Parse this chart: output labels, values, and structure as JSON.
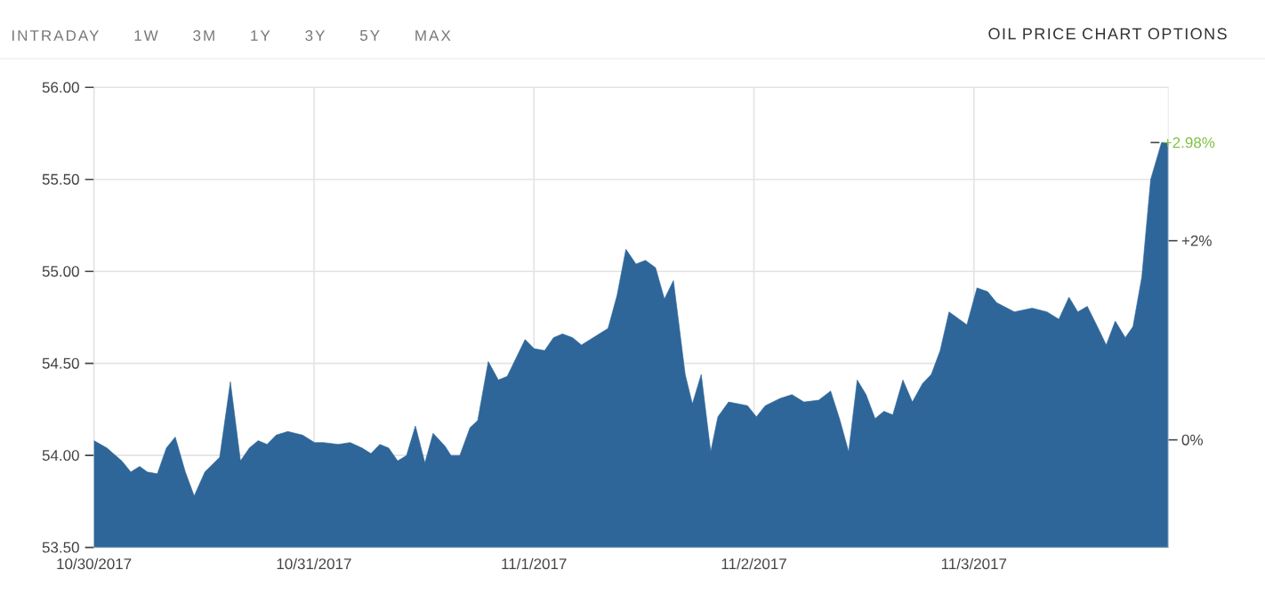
{
  "chart_data": {
    "type": "area",
    "title": "OIL PRICE CHART OPTIONS",
    "annotations": [
      "INTRADAY",
      "1W",
      "3M",
      "1Y",
      "3Y",
      "5Y",
      "MAX",
      {
        "text": "+2.98%",
        "x": "2017-11-03T21:14",
        "y": 55.7
      }
    ],
    "x": [
      "2017-10-30T00:00",
      "2017-10-30T01:25",
      "2017-10-30T03:02",
      "2017-10-30T04:01",
      "2017-10-30T04:59",
      "2017-10-30T05:49",
      "2017-10-30T06:55",
      "2017-10-30T07:54",
      "2017-10-30T08:52",
      "2017-10-30T09:58",
      "2017-10-30T10:56",
      "2017-10-30T12:06",
      "2017-10-30T13:43",
      "2017-10-30T14:53",
      "2017-10-30T15:59",
      "2017-10-30T16:57",
      "2017-10-30T17:55",
      "2017-10-30T18:53",
      "2017-10-30T19:52",
      "2017-10-30T21:09",
      "2017-10-30T22:46",
      "2017-10-31T00:04",
      "2017-10-31T01:02",
      "2017-10-31T02:39",
      "2017-10-31T03:57",
      "2017-10-31T05:15",
      "2017-10-31T06:13",
      "2017-10-31T07:11",
      "2017-10-31T08:09",
      "2017-10-31T09:08",
      "2017-10-31T10:06",
      "2017-10-31T11:04",
      "2017-10-31T12:06",
      "2017-10-31T13:00",
      "2017-10-31T14:18",
      "2017-10-31T14:57",
      "2017-10-31T15:55",
      "2017-10-31T17:01",
      "2017-10-31T17:52",
      "2017-10-31T19:01",
      "2017-10-31T20:07",
      "2017-10-31T21:05",
      "2017-10-31T23:02",
      "2017-11-01T00:01",
      "2017-11-01T01:10",
      "2017-11-01T02:08",
      "2017-11-01T03:07",
      "2017-11-01T04:13",
      "2017-11-01T05:11",
      "2017-11-01T06:48",
      "2017-11-01T08:05",
      "2017-11-01T09:04",
      "2017-11-01T10:02",
      "2017-11-01T11:08",
      "2017-11-01T12:10",
      "2017-11-01T13:16",
      "2017-11-01T14:14",
      "2017-11-01T15:13",
      "2017-11-01T16:30",
      "2017-11-01T17:17",
      "2017-11-01T18:15",
      "2017-11-01T19:17",
      "2017-11-01T20:04",
      "2017-11-01T21:14",
      "2017-11-01T22:20",
      "2017-11-01T23:18",
      "2017-11-02T00:16",
      "2017-11-02T01:14",
      "2017-11-02T02:52",
      "2017-11-02T04:09",
      "2017-11-02T05:27",
      "2017-11-02T07:04",
      "2017-11-02T08:22",
      "2017-11-02T09:20",
      "2017-11-02T10:20",
      "2017-11-02T11:16",
      "2017-11-02T12:14",
      "2017-11-02T13:13",
      "2017-11-02T14:11",
      "2017-11-02T15:09",
      "2017-11-02T16:15",
      "2017-11-02T17:17",
      "2017-11-02T18:23",
      "2017-11-02T19:21",
      "2017-11-02T20:19",
      "2017-11-02T21:17",
      "2017-11-02T23:14",
      "2017-11-03T00:20",
      "2017-11-03T01:30",
      "2017-11-03T02:28",
      "2017-11-03T04:25",
      "2017-11-03T06:21",
      "2017-11-03T07:58",
      "2017-11-03T09:16",
      "2017-11-03T10:22",
      "2017-11-03T11:20",
      "2017-11-03T12:22",
      "2017-11-03T13:28",
      "2017-11-03T14:26",
      "2017-11-03T15:25",
      "2017-11-03T16:31",
      "2017-11-03T17:21",
      "2017-11-03T18:19",
      "2017-11-03T19:17",
      "2017-11-03T20:28",
      "2017-11-03T21:14"
    ],
    "series": [
      {
        "color": "#2e6699",
        "values": [
          54.08,
          54.04,
          53.97,
          53.91,
          53.94,
          53.91,
          53.9,
          54.04,
          54.1,
          53.91,
          53.78,
          53.91,
          53.99,
          54.4,
          53.97,
          54.04,
          54.08,
          54.06,
          54.11,
          54.13,
          54.11,
          54.07,
          54.07,
          54.06,
          54.07,
          54.04,
          54.01,
          54.06,
          54.04,
          53.97,
          54.0,
          54.16,
          53.96,
          54.12,
          54.05,
          54.0,
          54.0,
          54.15,
          54.19,
          54.51,
          54.41,
          54.43,
          54.63,
          54.58,
          54.57,
          54.64,
          54.66,
          54.64,
          54.6,
          54.65,
          54.69,
          54.87,
          55.12,
          55.04,
          55.06,
          55.02,
          54.85,
          54.95,
          54.44,
          54.28,
          54.44,
          54.02,
          54.21,
          54.29,
          54.28,
          54.27,
          54.21,
          54.27,
          54.31,
          54.33,
          54.29,
          54.3,
          54.35,
          54.2,
          54.02,
          54.41,
          54.33,
          54.2,
          54.24,
          54.22,
          54.41,
          54.29,
          54.39,
          54.44,
          54.57,
          54.78,
          54.71,
          54.91,
          54.89,
          54.83,
          54.78,
          54.8,
          54.78,
          54.74,
          54.86,
          54.78,
          54.81,
          54.7,
          54.6,
          54.73,
          54.64,
          54.7,
          54.97,
          55.5,
          55.7,
          55.7
        ]
      }
    ],
    "xlim": [
      "2017-10-30T00:00",
      "2017-11-03T21:14"
    ],
    "xticks": [
      {
        "value": "2017-10-30",
        "label": "10/30/2017"
      },
      {
        "value": "2017-10-31",
        "label": "10/31/2017"
      },
      {
        "value": "2017-11-01",
        "label": "11/1/2017"
      },
      {
        "value": "2017-11-02",
        "label": "11/2/2017"
      },
      {
        "value": "2017-11-03",
        "label": "11/3/2017"
      }
    ],
    "ylim": [
      53.5,
      56
    ],
    "yticks": [
      {
        "value": 53.5,
        "label": "53.50"
      },
      {
        "value": 54,
        "label": "54.00"
      },
      {
        "value": 54.5,
        "label": "54.50"
      },
      {
        "value": 55,
        "label": "55.00"
      },
      {
        "value": 55.5,
        "label": "55.50"
      },
      {
        "value": 56,
        "label": "56.00"
      }
    ],
    "y2lim": [
      -1.08,
      3.54
    ],
    "y2ticks": [
      {
        "value": 0,
        "label": "0%"
      },
      {
        "value": 2,
        "label": "+2%"
      }
    ],
    "grid": true
  }
}
